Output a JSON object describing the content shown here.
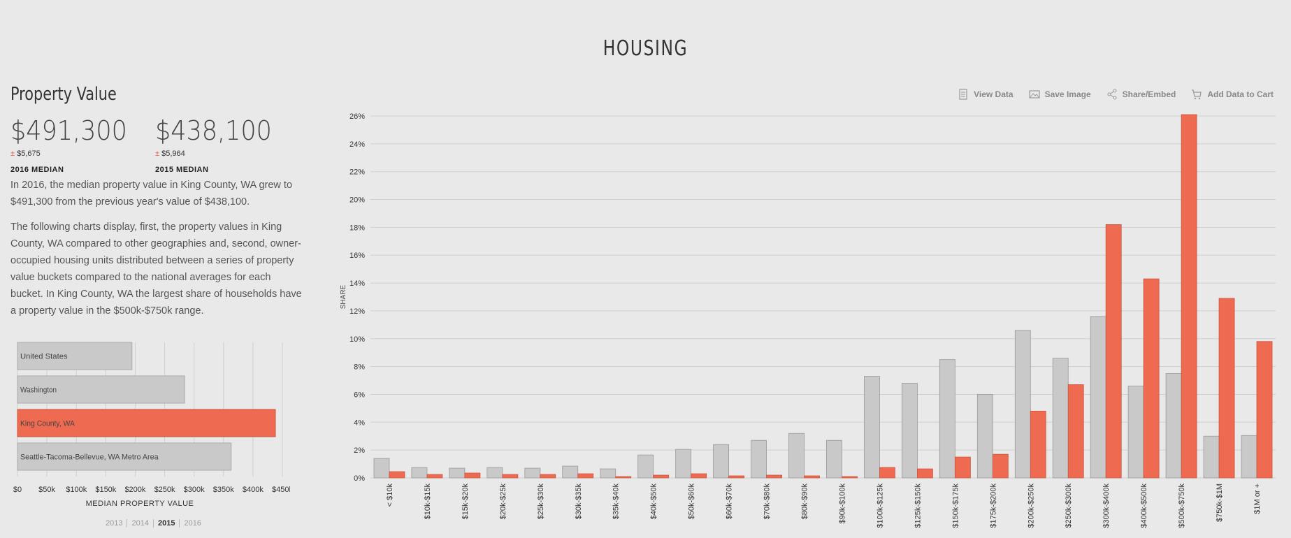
{
  "page": {
    "title": "HOUSING"
  },
  "section": {
    "title": "Property Value",
    "stats": [
      {
        "value": "$491,300",
        "moe_sign": "±",
        "moe": "$5,675",
        "label": "2016 MEDIAN"
      },
      {
        "value": "$438,100",
        "moe_sign": "±",
        "moe": "$5,964",
        "label": "2015 MEDIAN"
      }
    ],
    "paragraph1": "In 2016, the median property value in King County, WA grew to $491,300 from the previous year's value of $438,100.",
    "paragraph2": "The following charts display, first, the property values in King County, WA compared to other geographies and, second, owner-occupied housing units distributed between a series of property value buckets compared to the national averages for each bucket. In King County, WA the largest share of households have a property value in the $500k-$750k range."
  },
  "toolbar": {
    "view_data": "View Data",
    "save_image": "Save Image",
    "share_embed": "Share/Embed",
    "add_to_cart": "Add Data to Cart"
  },
  "year_tabs": {
    "items": [
      "2013",
      "2014",
      "2015",
      "2016"
    ],
    "active": "2015"
  },
  "colors": {
    "highlight": "#ee6a50",
    "gray": "#c9c9c9",
    "background": "#e9e9e9"
  },
  "chart_data": [
    {
      "type": "bar",
      "orientation": "horizontal",
      "categories": [
        "United States",
        "Washington",
        "King County, WA",
        "Seattle-Tacoma-Bellevue, WA Metro Area"
      ],
      "values": [
        194500,
        284000,
        438100,
        363000
      ],
      "highlight": "King County, WA",
      "xlabel": "MEDIAN PROPERTY VALUE",
      "xlim": [
        0,
        450000
      ],
      "ticks": [
        "$0",
        "$50k",
        "$100k",
        "$150k",
        "$200k",
        "$250k",
        "$300k",
        "$350k",
        "$400k",
        "$450k"
      ]
    },
    {
      "type": "bar",
      "categories": [
        "< $10k",
        "$10k-$15k",
        "$15k-$20k",
        "$20k-$25k",
        "$25k-$30k",
        "$30k-$35k",
        "$35k-$40k",
        "$40k-$50k",
        "$50k-$60k",
        "$60k-$70k",
        "$70k-$80k",
        "$80k-$90k",
        "$90k-$100k",
        "$100k-$125k",
        "$125k-$150k",
        "$150k-$175k",
        "$175k-$200k",
        "$200k-$250k",
        "$250k-$300k",
        "$300k-$400k",
        "$400k-$500k",
        "$500k-$750k",
        "$750k-$1M",
        "$1M or +"
      ],
      "series": [
        {
          "color": "#c9c9c9",
          "values": [
            1.4,
            0.75,
            0.7,
            0.75,
            0.7,
            0.85,
            0.65,
            1.65,
            2.05,
            2.4,
            2.7,
            3.2,
            2.7,
            7.3,
            6.8,
            8.5,
            6.0,
            10.6,
            8.6,
            11.6,
            6.6,
            7.5,
            3.0,
            3.05
          ]
        },
        {
          "color": "#ee6a50",
          "values": [
            0.45,
            0.25,
            0.35,
            0.25,
            0.25,
            0.3,
            0.1,
            0.2,
            0.3,
            0.15,
            0.2,
            0.15,
            0.1,
            0.75,
            0.65,
            1.5,
            1.7,
            4.8,
            6.7,
            18.2,
            14.3,
            26.1,
            12.9,
            9.8
          ]
        }
      ],
      "ylabel": "SHARE",
      "ylim": [
        0,
        26
      ],
      "yticks": [
        "0%",
        "2%",
        "4%",
        "6%",
        "8%",
        "10%",
        "12%",
        "14%",
        "16%",
        "18%",
        "20%",
        "22%",
        "24%",
        "26%"
      ]
    }
  ]
}
